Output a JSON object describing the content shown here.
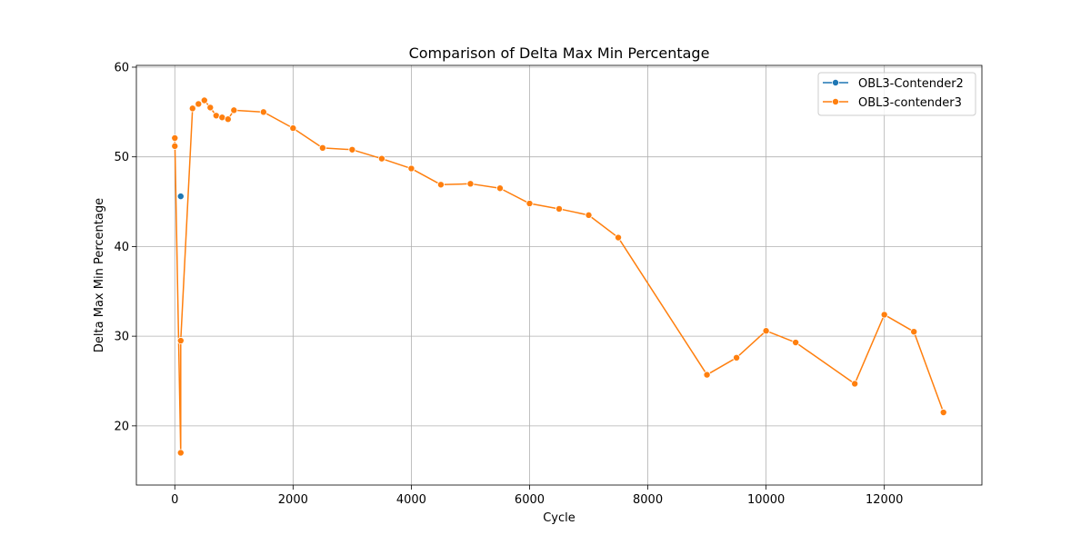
{
  "chart_data": {
    "type": "line",
    "title": "Comparison of Delta Max Min Percentage",
    "xlabel": "Cycle",
    "ylabel": "Delta Max Min Percentage",
    "xlim": [
      -650,
      13650
    ],
    "ylim": [
      13.4,
      60.2
    ],
    "xticks": [
      0,
      2000,
      4000,
      6000,
      8000,
      10000,
      12000
    ],
    "yticks": [
      20,
      30,
      40,
      50,
      60
    ],
    "grid": true,
    "legend_position": "top-right",
    "series": [
      {
        "name": "OBL3-Contender2",
        "color": "#1f77b4",
        "x": [
          100
        ],
        "y": [
          45.6
        ]
      },
      {
        "name": "OBL3-contender3",
        "color": "#ff7f0e",
        "x": [
          0,
          0,
          100,
          100,
          300,
          400,
          500,
          600,
          700,
          800,
          900,
          1000,
          1500,
          2000,
          2500,
          3000,
          3500,
          4000,
          4500,
          5000,
          5500,
          6000,
          6500,
          7000,
          7500,
          9000,
          9500,
          10000,
          10500,
          11500,
          12000,
          12500,
          13000
        ],
        "y": [
          51.2,
          52.1,
          17.0,
          29.5,
          55.4,
          55.9,
          56.3,
          55.5,
          54.6,
          54.4,
          54.2,
          55.2,
          55.0,
          53.2,
          51.0,
          50.8,
          49.8,
          48.7,
          46.9,
          47.0,
          46.5,
          44.8,
          44.2,
          43.5,
          41.0,
          25.7,
          27.6,
          30.6,
          29.3,
          24.7,
          32.4,
          30.5,
          21.5
        ]
      }
    ]
  }
}
